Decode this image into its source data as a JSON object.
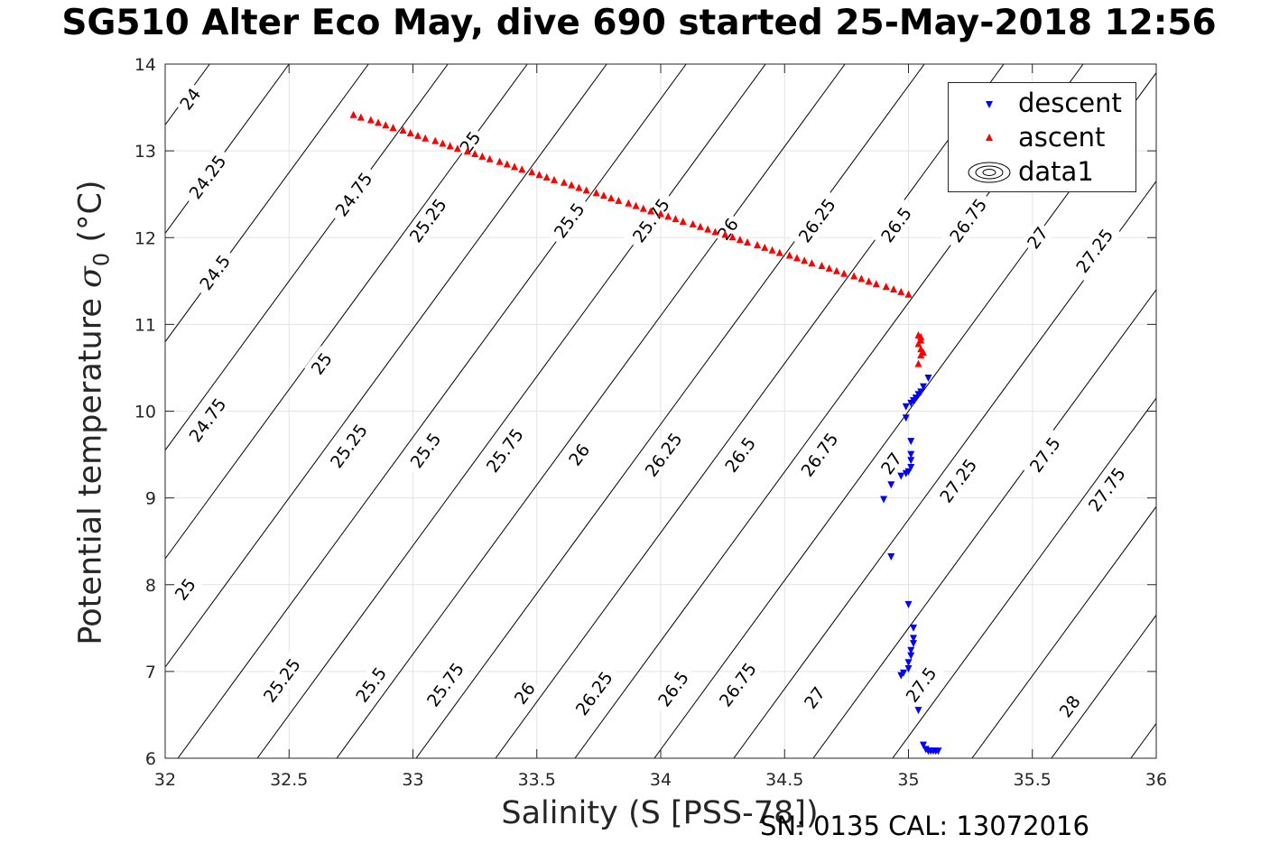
{
  "header": {
    "title": "SG510 Alter Eco May, dive 690 started 25-May-2018 12:56",
    "footer": "SN: 0135  CAL: 13072016"
  },
  "chart_data": {
    "type": "scatter",
    "title": "SG510 Alter Eco May, dive 690 started 25-May-2018 12:56",
    "xlabel": "Salinity (S [PSS-78])",
    "ylabel": "Potential temperature",
    "ylabel_symbol": "σ",
    "ylabel_subscript": "0",
    "ylabel_unit": "(°C)",
    "xlim": [
      32,
      36
    ],
    "ylim": [
      6,
      14
    ],
    "xticks": [
      32,
      32.5,
      33,
      33.5,
      34,
      34.5,
      35,
      35.5,
      36
    ],
    "xtick_labels": [
      "32",
      "32.5",
      "33",
      "33.5",
      "34",
      "34.5",
      "35",
      "35.5",
      "36"
    ],
    "yticks": [
      6,
      7,
      8,
      9,
      10,
      11,
      12,
      13,
      14
    ],
    "ytick_labels": [
      "6",
      "7",
      "8",
      "9",
      "10",
      "11",
      "12",
      "13",
      "14"
    ],
    "grid": true,
    "legend_position": "top-right",
    "legend": [
      "descent",
      "ascent",
      "data1"
    ],
    "contours": {
      "name": "data1",
      "levels": [
        24,
        24.25,
        24.5,
        24.75,
        25,
        25.25,
        25.5,
        25.75,
        26,
        26.25,
        26.5,
        26.75,
        27,
        27.25,
        27.5,
        27.75,
        28
      ],
      "color": "#000000",
      "labels": [
        {
          "text": "24",
          "s": 32.1,
          "t": 13.6
        },
        {
          "text": "24.25",
          "s": 32.17,
          "t": 12.7
        },
        {
          "text": "24.5",
          "s": 32.2,
          "t": 11.6
        },
        {
          "text": "24.75",
          "s": 32.17,
          "t": 9.9
        },
        {
          "text": "25",
          "s": 32.08,
          "t": 7.95
        },
        {
          "text": "24.75",
          "s": 32.76,
          "t": 12.5
        },
        {
          "text": "25",
          "s": 32.63,
          "t": 10.55
        },
        {
          "text": "25.25",
          "s": 32.47,
          "t": 6.9
        },
        {
          "text": "25",
          "s": 33.23,
          "t": 13.1
        },
        {
          "text": "25.25",
          "s": 33.06,
          "t": 12.2
        },
        {
          "text": "25.25",
          "s": 32.74,
          "t": 9.6
        },
        {
          "text": "25.5",
          "s": 32.83,
          "t": 6.85
        },
        {
          "text": "25.5",
          "s": 33.63,
          "t": 12.2
        },
        {
          "text": "25.5",
          "s": 33.05,
          "t": 9.55
        },
        {
          "text": "25.75",
          "s": 33.13,
          "t": 6.85
        },
        {
          "text": "25.75",
          "s": 33.96,
          "t": 12.2
        },
        {
          "text": "25.75",
          "s": 33.37,
          "t": 9.55
        },
        {
          "text": "26",
          "s": 33.45,
          "t": 6.75
        },
        {
          "text": "26",
          "s": 34.27,
          "t": 12.1
        },
        {
          "text": "26",
          "s": 33.67,
          "t": 9.5
        },
        {
          "text": "26.25",
          "s": 33.73,
          "t": 6.75
        },
        {
          "text": "26.25",
          "s": 34.63,
          "t": 12.2
        },
        {
          "text": "26.25",
          "s": 34.01,
          "t": 9.5
        },
        {
          "text": "26.5",
          "s": 34.05,
          "t": 6.8
        },
        {
          "text": "26.5",
          "s": 34.95,
          "t": 12.15
        },
        {
          "text": "26.5",
          "s": 34.32,
          "t": 9.5
        },
        {
          "text": "26.75",
          "s": 34.31,
          "t": 6.85
        },
        {
          "text": "26.75",
          "s": 35.24,
          "t": 12.2
        },
        {
          "text": "26.75",
          "s": 34.64,
          "t": 9.5
        },
        {
          "text": "27",
          "s": 34.62,
          "t": 6.7
        },
        {
          "text": "27",
          "s": 35.52,
          "t": 12.0
        },
        {
          "text": "27",
          "s": 34.93,
          "t": 9.4
        },
        {
          "text": "27.25",
          "s": 35.75,
          "t": 11.85
        },
        {
          "text": "27.25",
          "s": 35.2,
          "t": 9.2
        },
        {
          "text": "27.5",
          "s": 35.05,
          "t": 6.85
        },
        {
          "text": "27.5",
          "s": 35.55,
          "t": 9.5
        },
        {
          "text": "27.75",
          "s": 35.8,
          "t": 9.1
        },
        {
          "text": "28",
          "s": 35.65,
          "t": 6.6
        }
      ]
    },
    "series": [
      {
        "name": "descent",
        "color": "#0000ff",
        "marker": "triangle-down",
        "points": [
          [
            35.08,
            10.38
          ],
          [
            35.06,
            10.28
          ],
          [
            35.05,
            10.22
          ],
          [
            35.04,
            10.19
          ],
          [
            35.03,
            10.15
          ],
          [
            35.02,
            10.12
          ],
          [
            35.01,
            10.09
          ],
          [
            34.99,
            10.05
          ],
          [
            34.99,
            9.92
          ],
          [
            35.01,
            9.65
          ],
          [
            35.01,
            9.5
          ],
          [
            35.01,
            9.43
          ],
          [
            35.01,
            9.35
          ],
          [
            35.0,
            9.3
          ],
          [
            34.99,
            9.28
          ],
          [
            34.97,
            9.25
          ],
          [
            34.93,
            9.15
          ],
          [
            34.9,
            8.98
          ],
          [
            34.93,
            8.32
          ],
          [
            35.0,
            7.77
          ],
          [
            35.02,
            7.5
          ],
          [
            35.02,
            7.38
          ],
          [
            35.02,
            7.32
          ],
          [
            35.01,
            7.24
          ],
          [
            35.01,
            7.18
          ],
          [
            35.0,
            7.1
          ],
          [
            35.0,
            7.03
          ],
          [
            34.98,
            6.98
          ],
          [
            34.97,
            6.95
          ],
          [
            35.04,
            6.55
          ],
          [
            35.06,
            6.15
          ],
          [
            35.07,
            6.1
          ],
          [
            35.08,
            6.08
          ],
          [
            35.09,
            6.08
          ],
          [
            35.1,
            6.08
          ],
          [
            35.11,
            6.08
          ],
          [
            35.12,
            6.08
          ]
        ]
      },
      {
        "name": "ascent",
        "color": "#ff0000",
        "marker": "triangle-up",
        "points": [
          [
            32.76,
            13.42
          ],
          [
            32.79,
            13.39
          ],
          [
            32.83,
            13.36
          ],
          [
            32.86,
            13.33
          ],
          [
            32.89,
            13.3
          ],
          [
            32.92,
            13.27
          ],
          [
            32.96,
            13.24
          ],
          [
            32.99,
            13.21
          ],
          [
            33.02,
            13.18
          ],
          [
            33.05,
            13.15
          ],
          [
            33.09,
            13.12
          ],
          [
            33.12,
            13.09
          ],
          [
            33.15,
            13.06
          ],
          [
            33.18,
            13.03
          ],
          [
            33.22,
            13.0
          ],
          [
            33.25,
            12.97
          ],
          [
            33.28,
            12.94
          ],
          [
            33.31,
            12.91
          ],
          [
            33.35,
            12.88
          ],
          [
            33.38,
            12.85
          ],
          [
            33.41,
            12.82
          ],
          [
            33.44,
            12.79
          ],
          [
            33.48,
            12.76
          ],
          [
            33.51,
            12.73
          ],
          [
            33.54,
            12.7
          ],
          [
            33.57,
            12.67
          ],
          [
            33.61,
            12.64
          ],
          [
            33.64,
            12.61
          ],
          [
            33.67,
            12.58
          ],
          [
            33.7,
            12.55
          ],
          [
            33.74,
            12.52
          ],
          [
            33.77,
            12.49
          ],
          [
            33.8,
            12.46
          ],
          [
            33.83,
            12.43
          ],
          [
            33.87,
            12.4
          ],
          [
            33.9,
            12.37
          ],
          [
            33.93,
            12.34
          ],
          [
            33.96,
            12.31
          ],
          [
            34.0,
            12.28
          ],
          [
            34.03,
            12.25
          ],
          [
            34.06,
            12.22
          ],
          [
            34.09,
            12.19
          ],
          [
            34.13,
            12.16
          ],
          [
            34.16,
            12.13
          ],
          [
            34.19,
            12.1
          ],
          [
            34.22,
            12.07
          ],
          [
            34.26,
            12.04
          ],
          [
            34.29,
            12.01
          ],
          [
            34.32,
            11.98
          ],
          [
            34.35,
            11.95
          ],
          [
            34.39,
            11.92
          ],
          [
            34.42,
            11.89
          ],
          [
            34.45,
            11.86
          ],
          [
            34.48,
            11.83
          ],
          [
            34.52,
            11.8
          ],
          [
            34.55,
            11.77
          ],
          [
            34.58,
            11.74
          ],
          [
            34.61,
            11.71
          ],
          [
            34.65,
            11.68
          ],
          [
            34.68,
            11.65
          ],
          [
            34.71,
            11.62
          ],
          [
            34.74,
            11.59
          ],
          [
            34.78,
            11.56
          ],
          [
            34.81,
            11.53
          ],
          [
            34.84,
            11.5
          ],
          [
            34.87,
            11.47
          ],
          [
            34.91,
            11.44
          ],
          [
            34.94,
            11.41
          ],
          [
            34.97,
            11.38
          ],
          [
            35.0,
            11.35
          ],
          [
            35.04,
            10.88
          ],
          [
            35.05,
            10.86
          ],
          [
            35.05,
            10.82
          ],
          [
            35.04,
            10.78
          ],
          [
            35.05,
            10.72
          ],
          [
            35.06,
            10.68
          ],
          [
            35.05,
            10.65
          ],
          [
            35.04,
            10.55
          ]
        ]
      }
    ]
  }
}
